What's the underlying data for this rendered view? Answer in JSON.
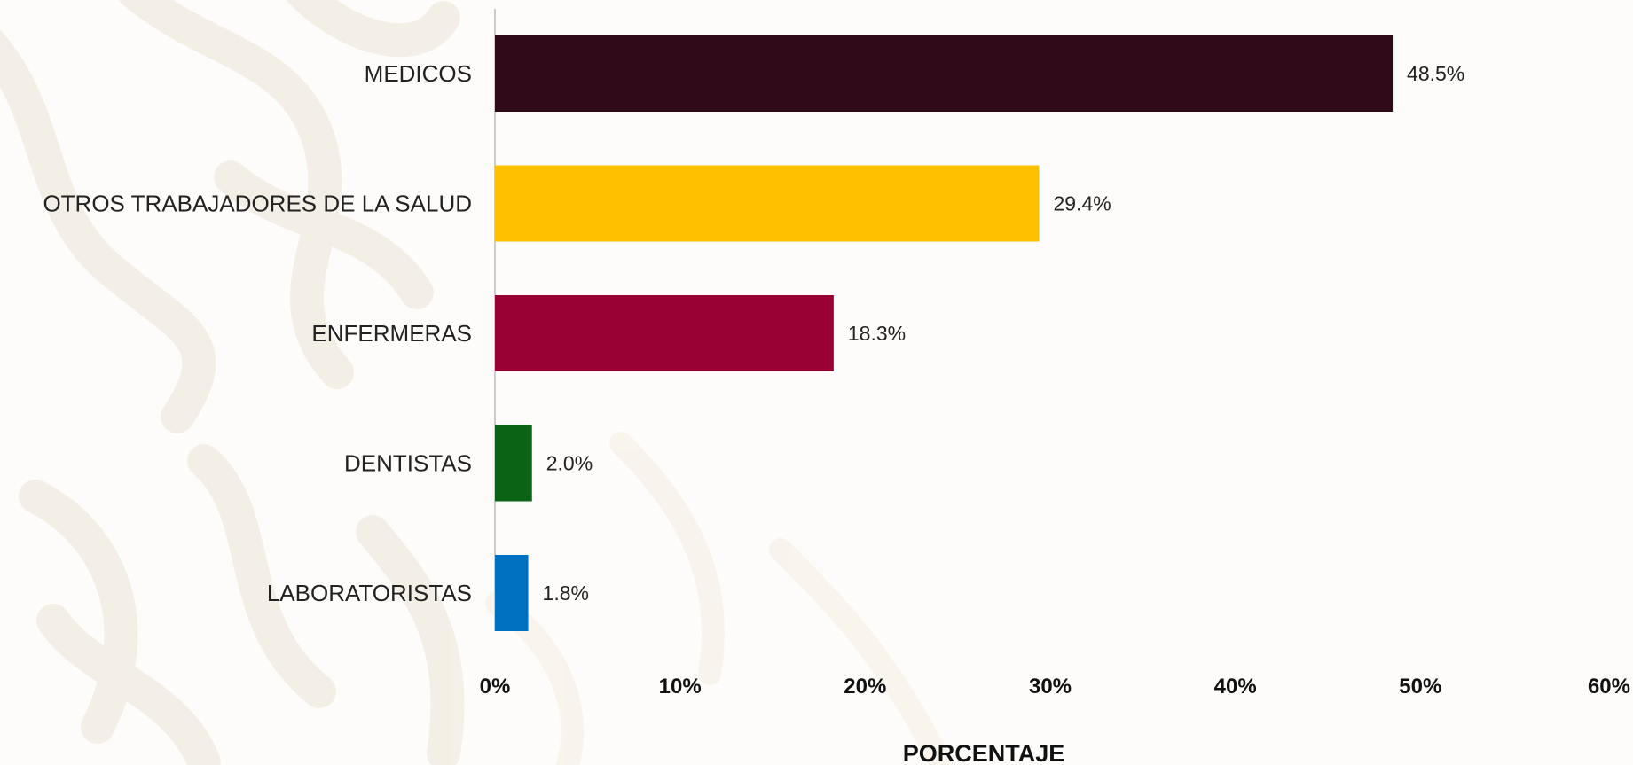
{
  "chart_data": {
    "type": "bar",
    "orientation": "horizontal",
    "categories": [
      "MEDICOS",
      "OTROS TRABAJADORES DE LA SALUD",
      "ENFERMERAS",
      "DENTISTAS",
      "LABORATORISTAS"
    ],
    "values": [
      48.5,
      29.4,
      18.3,
      2.0,
      1.8
    ],
    "value_labels": [
      "48.5%",
      "29.4%",
      "18.3%",
      "2.0%",
      "1.8%"
    ],
    "colors": [
      "#300a18",
      "#ffc000",
      "#990033",
      "#0b6316",
      "#0070c0"
    ],
    "xlabel": "PORCENTAJE",
    "ylabel": "",
    "xlim": [
      0,
      60
    ],
    "x_ticks": [
      0,
      10,
      20,
      30,
      40,
      50,
      60
    ],
    "x_tick_labels": [
      "0%",
      "10%",
      "20%",
      "30%",
      "40%",
      "50%",
      "60%"
    ],
    "grid": false,
    "legend": "none"
  }
}
